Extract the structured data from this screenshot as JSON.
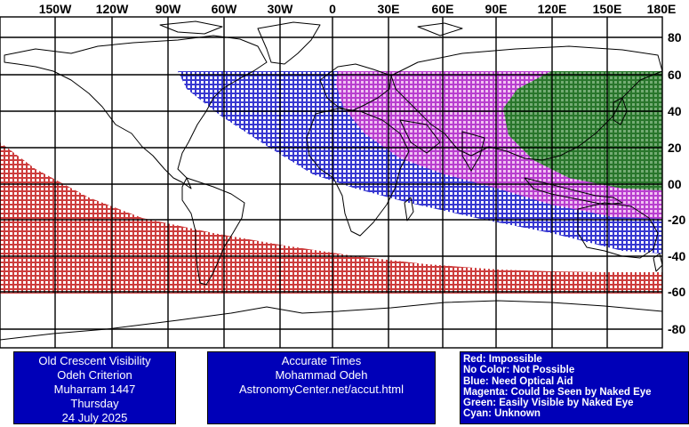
{
  "lon_labels": [
    "150W",
    "120W",
    "90W",
    "60W",
    "30W",
    "0",
    "30E",
    "60E",
    "90E",
    "120E",
    "150E",
    "180E"
  ],
  "lat_labels": [
    "80",
    "60",
    "40",
    "20",
    "00",
    "-20",
    "-40",
    "-60",
    "-80"
  ],
  "visibility_colors": {
    "impossible": "#c82828",
    "optical_aid": "#2222cc",
    "naked_eye_maybe": "#cc33cc",
    "easily_visible": "#117711"
  },
  "info_box_left": {
    "line1": "Old Crescent Visibility",
    "line2": "Odeh Criterion",
    "line3": "Muharram 1447",
    "line4": "Thursday",
    "line5": "24 July 2025"
  },
  "info_box_center": {
    "line1": "Accurate Times",
    "line2": "Mohammad Odeh",
    "line3": "AstronomyCenter.net/accut.html"
  },
  "legend": {
    "red": "Red: Impossible",
    "none": "No Color: Not Possible",
    "blue": "Blue: Need Optical Aid",
    "magenta": "Magenta: Could be Seen by Naked Eye",
    "green": "Green: Easily Visible by Naked Eye",
    "cyan": "Cyan: Unknown"
  }
}
